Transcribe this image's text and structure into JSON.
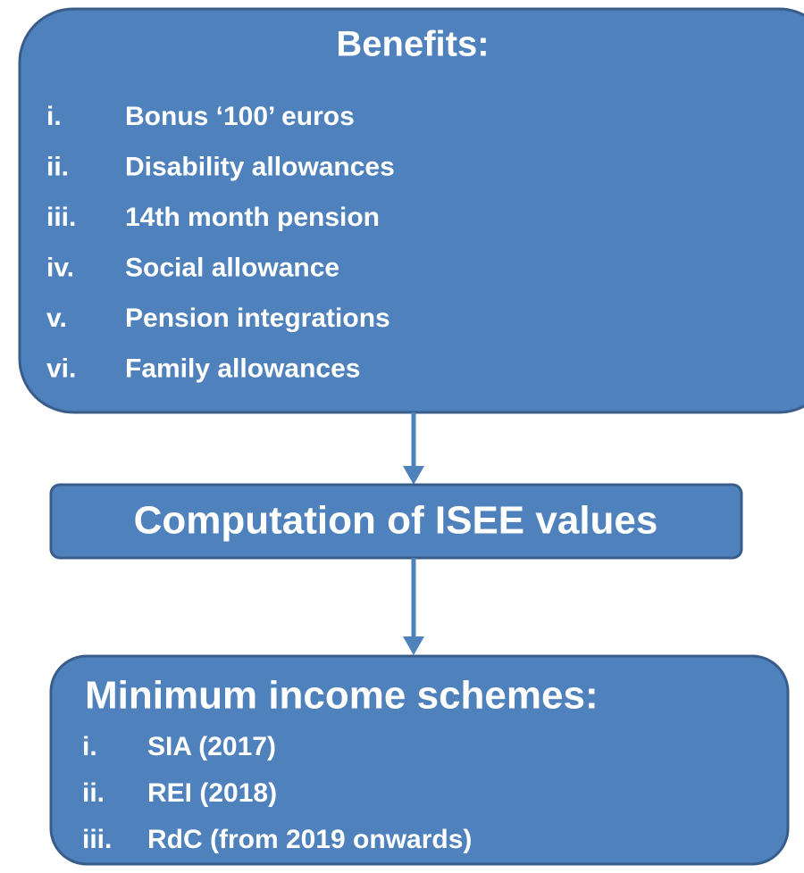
{
  "nodes": [
    {
      "title": "Benefits:",
      "items": [
        {
          "numeral": "i.",
          "text": "Bonus ‘100’ euros"
        },
        {
          "numeral": "ii.",
          "text": "Disability allowances"
        },
        {
          "numeral": "iii.",
          "text": "14th month pension"
        },
        {
          "numeral": "iv.",
          "text": "Social allowance"
        },
        {
          "numeral": "v.",
          "text": "Pension integrations"
        },
        {
          "numeral": "vi.",
          "text": "Family allowances"
        }
      ]
    },
    {
      "title": "Computation of ISEE values"
    },
    {
      "title": "Minimum income schemes:",
      "items": [
        {
          "numeral": "i.",
          "text": "SIA (2017)"
        },
        {
          "numeral": "ii.",
          "text": "REI (2018)"
        },
        {
          "numeral": "iii.",
          "text": "RdC (from 2019 onwards)"
        }
      ]
    }
  ]
}
